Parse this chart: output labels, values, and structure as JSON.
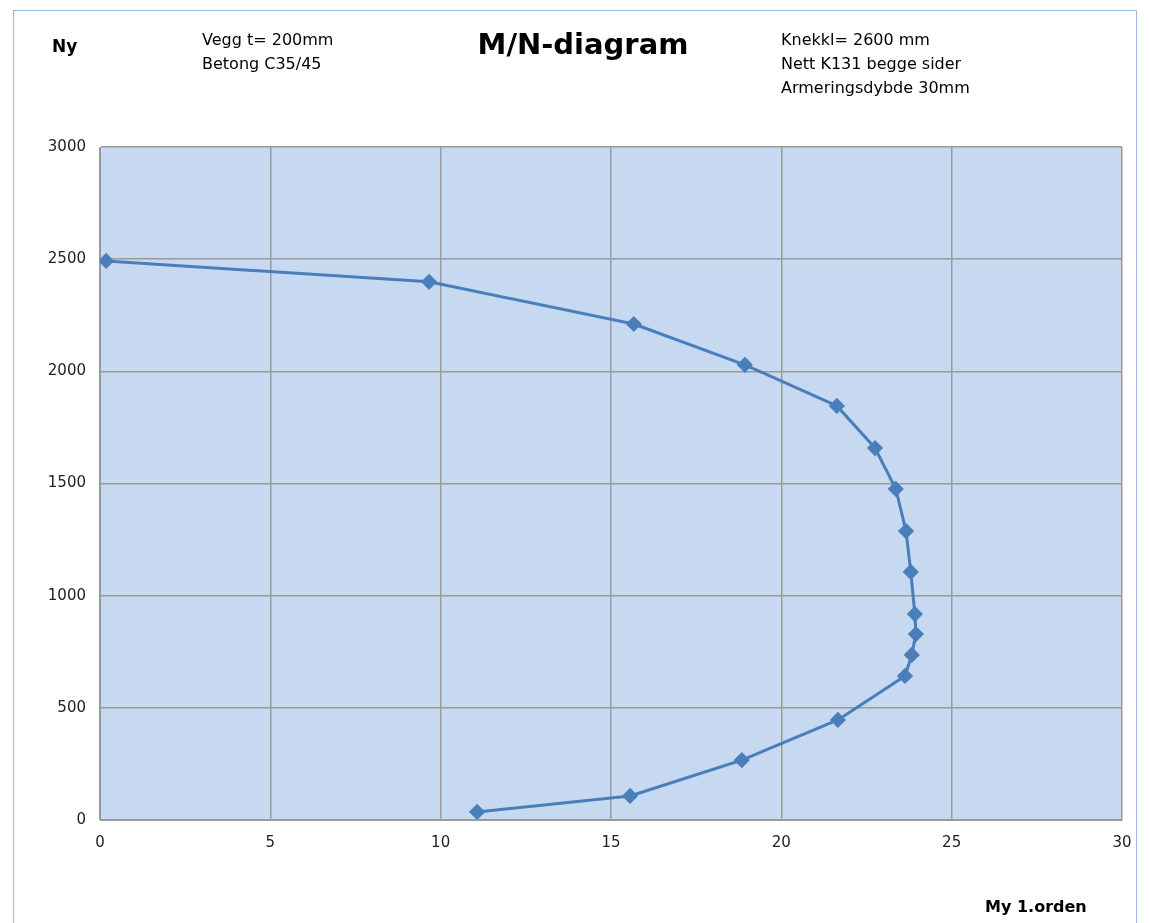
{
  "chart_data": {
    "type": "line",
    "title": "M/N-diagram",
    "xlabel": "My 1.orden",
    "ylabel": "Ny",
    "annotations": [
      "Vegg t= 200mm",
      "Betong C35/45",
      "Knekkl= 2600 mm",
      "Nett K131 begge sider",
      "Armeringsdybde  30mm"
    ],
    "xlim": [
      0,
      30
    ],
    "xticks": [
      0,
      5,
      10,
      15,
      20,
      25,
      30
    ],
    "ylim": [
      0,
      3000
    ],
    "yticks": [
      0,
      500,
      1000,
      1500,
      2000,
      2500,
      3000
    ],
    "grid": true,
    "legend": false,
    "marker": "diamond",
    "line_style": "solid",
    "series": [
      {
        "color": "#4a7ebb",
        "x": [
          0.18,
          9.66,
          15.67,
          18.93,
          21.63,
          22.75,
          23.36,
          23.66,
          23.8,
          23.92,
          23.95,
          23.83,
          23.63,
          21.66,
          18.84,
          15.56,
          11.07
        ],
        "values": [
          2492,
          2399,
          2211,
          2029,
          1846,
          1658,
          1476,
          1288,
          1106,
          918,
          829,
          736,
          642,
          446,
          267,
          107,
          36
        ]
      }
    ]
  }
}
